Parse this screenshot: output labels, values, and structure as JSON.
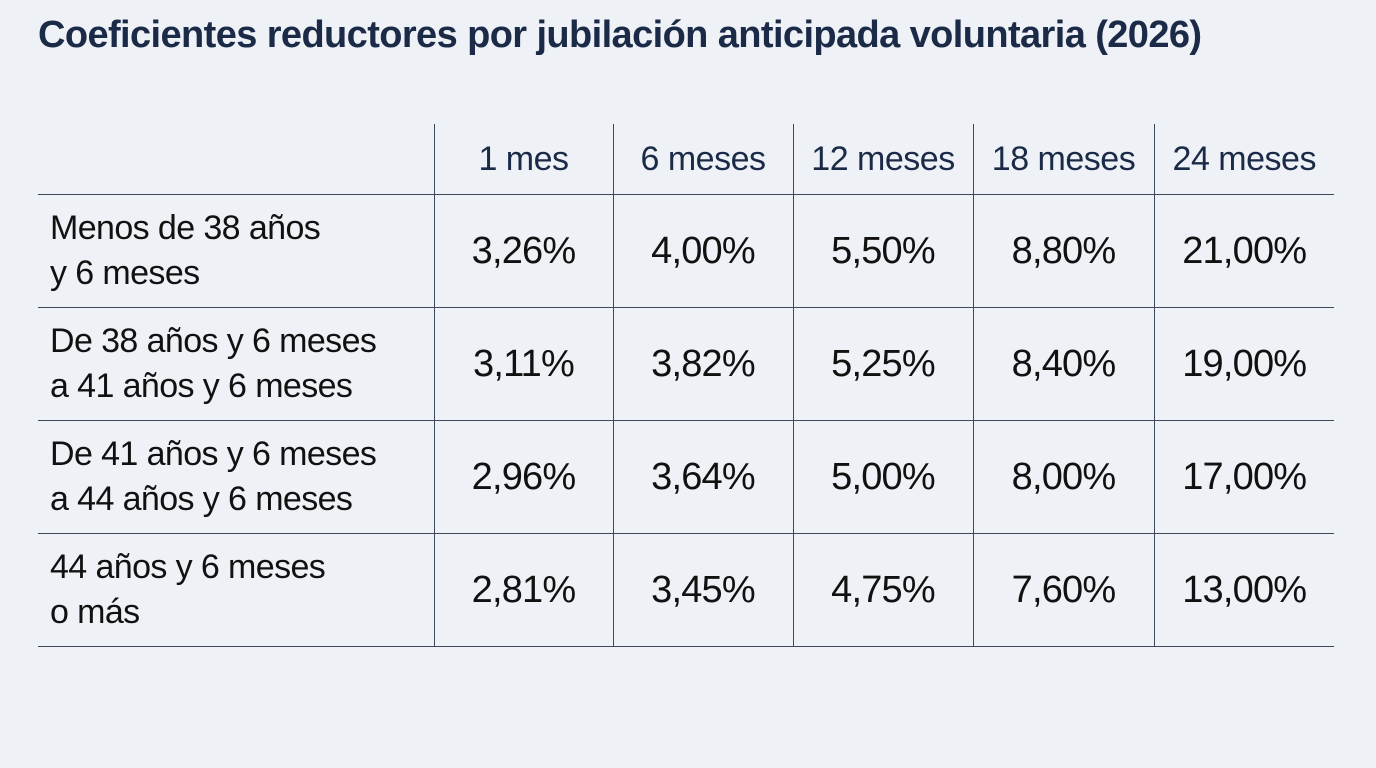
{
  "chart_data": {
    "type": "table",
    "title": "Coeficientes reductores por jubilación anticipada voluntaria (2026)",
    "columns": [
      "1 mes",
      "6 meses",
      "12 meses",
      "18 meses",
      "24 meses"
    ],
    "rows": [
      {
        "label_lines": [
          "Menos de 38 años",
          "y 6 meses"
        ],
        "values": [
          "3,26%",
          "4,00%",
          "5,50%",
          "8,80%",
          "21,00%"
        ]
      },
      {
        "label_lines": [
          "De 38 años y 6 meses",
          "a 41 años y 6 meses"
        ],
        "values": [
          "3,11%",
          "3,82%",
          "5,25%",
          "8,40%",
          "19,00%"
        ]
      },
      {
        "label_lines": [
          "De 41 años y 6 meses",
          "a 44 años y 6 meses"
        ],
        "values": [
          "2,96%",
          "3,64%",
          "5,00%",
          "8,00%",
          "17,00%"
        ]
      },
      {
        "label_lines": [
          "44 años y 6 meses",
          "o más"
        ],
        "values": [
          "2,81%",
          "3,45%",
          "4,75%",
          "7,60%",
          "13,00%"
        ]
      }
    ]
  },
  "colors": {
    "background": "#eef1f6",
    "title": "#1b2a47",
    "grid_lines": "#3e4a5c",
    "text": "#111111"
  }
}
